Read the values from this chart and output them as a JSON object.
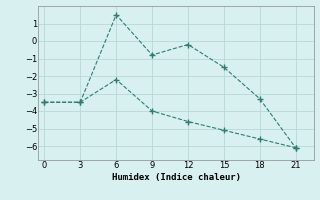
{
  "line1_x": [
    0,
    3,
    6,
    9,
    12,
    15,
    18,
    21
  ],
  "line1_y": [
    -3.5,
    -3.5,
    1.5,
    -0.8,
    -0.2,
    -1.5,
    -3.3,
    -6.1
  ],
  "line2_x": [
    0,
    3,
    6,
    9,
    12,
    15,
    18,
    21
  ],
  "line2_y": [
    -3.5,
    -3.5,
    -2.2,
    -4.0,
    -4.6,
    -5.1,
    -5.6,
    -6.1
  ],
  "line_color": "#2e7d6e",
  "bg_color": "#d8f0f0",
  "grid_color": "#b8d8d8",
  "xlabel": "Humidex (Indice chaleur)",
  "xticks": [
    0,
    3,
    6,
    9,
    12,
    15,
    18,
    21
  ],
  "yticks": [
    1,
    0,
    -1,
    -2,
    -3,
    -4,
    -5,
    -6
  ],
  "ylim": [
    -6.8,
    2.0
  ],
  "xlim": [
    -0.5,
    22.5
  ]
}
